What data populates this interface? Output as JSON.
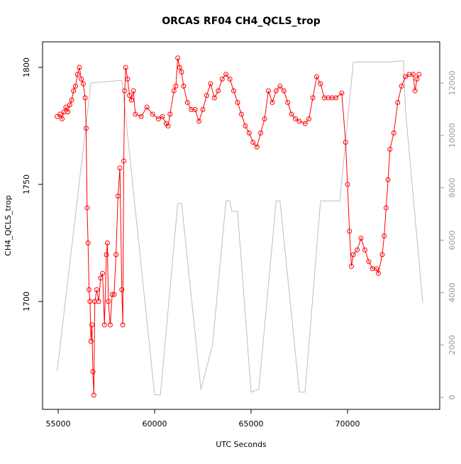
{
  "chart_data": {
    "type": "line",
    "title": "ORCAS RF04 CH4_QCLS_trop",
    "xlabel": "UTC Seconds",
    "ylabel": "CH4_QCLS_trop",
    "xlim": [
      54191,
      74779
    ],
    "xticks": [
      55000,
      60000,
      65000,
      70000
    ],
    "ylim": [
      1653.9,
      1810.9
    ],
    "yticks": [
      1700,
      1750,
      1800
    ],
    "y2lim": [
      -460,
      13571
    ],
    "y2ticks": [
      0,
      2000,
      4000,
      6000,
      8000,
      10000,
      12000
    ],
    "series": [
      {
        "color": "#ff0000",
        "markers": true,
        "x": [
          54950,
          55100,
          55200,
          55300,
          55400,
          55500,
          55600,
          55700,
          55800,
          55900,
          56000,
          56100,
          56200,
          56300,
          56400,
          56450,
          56500,
          56550,
          56600,
          56650,
          56700,
          56750,
          56800,
          56850,
          56900,
          57000,
          57100,
          57200,
          57300,
          57400,
          57500,
          57550,
          57600,
          57700,
          57800,
          57900,
          58000,
          58100,
          58200,
          58300,
          58350,
          58400,
          58450,
          58500,
          58600,
          58700,
          58800,
          58900,
          59000,
          59300,
          59600,
          59900,
          60200,
          60400,
          60600,
          60700,
          60800,
          61000,
          61100,
          61200,
          61300,
          61400,
          61500,
          61700,
          61900,
          62100,
          62300,
          62500,
          62700,
          62900,
          63100,
          63300,
          63500,
          63700,
          63900,
          64100,
          64300,
          64500,
          64700,
          64900,
          65100,
          65300,
          65500,
          65700,
          65900,
          66100,
          66300,
          66500,
          66700,
          66900,
          67100,
          67300,
          67500,
          67800,
          68000,
          68200,
          68400,
          68600,
          68800,
          69000,
          69200,
          69400,
          69700,
          69900,
          70000,
          70100,
          70200,
          70300,
          70500,
          70700,
          70900,
          71100,
          71300,
          71500,
          71600,
          71800,
          71900,
          72000,
          72100,
          72200,
          72400,
          72600,
          72800,
          73000,
          73200,
          73400,
          73500,
          73600,
          73700
        ],
        "values": [
          1779,
          1780,
          1778,
          1781,
          1783,
          1781,
          1784,
          1786,
          1790,
          1792,
          1797,
          1800,
          1795,
          1793,
          1787,
          1774,
          1740,
          1725,
          1705,
          1700,
          1683,
          1690,
          1670,
          1660,
          1700,
          1705,
          1700,
          1710,
          1712,
          1690,
          1720,
          1725,
          1700,
          1690,
          1703,
          1703,
          1720,
          1745,
          1757,
          1705,
          1690,
          1760,
          1790,
          1800,
          1795,
          1788,
          1786,
          1790,
          1780,
          1779,
          1783,
          1780,
          1778,
          1779,
          1776,
          1775,
          1780,
          1790,
          1792,
          1804,
          1800,
          1798,
          1792,
          1785,
          1782,
          1782,
          1777,
          1782,
          1788,
          1793,
          1787,
          1790,
          1795,
          1797,
          1795,
          1790,
          1785,
          1780,
          1775,
          1772,
          1768,
          1766,
          1772,
          1778,
          1790,
          1785,
          1790,
          1792,
          1790,
          1785,
          1780,
          1778,
          1777,
          1776,
          1778,
          1787,
          1796,
          1793,
          1787,
          1787,
          1787,
          1787,
          1789,
          1768,
          1750,
          1730,
          1715,
          1720,
          1722,
          1727,
          1722,
          1717,
          1714,
          1714,
          1712,
          1720,
          1728,
          1740,
          1752,
          1765,
          1772,
          1785,
          1792,
          1796,
          1797,
          1797,
          1790,
          1795,
          1797
        ]
      },
      {
        "color": "#bebebe",
        "axis": "y2",
        "markers": false,
        "x": [
          54950,
          56700,
          57500,
          58300,
          58600,
          60000,
          60300,
          61200,
          61400,
          62400,
          63000,
          63700,
          63900,
          64000,
          64300,
          65000,
          65400,
          66300,
          66500,
          67500,
          67800,
          68600,
          69600,
          70300,
          72000,
          72900,
          73000,
          73900
        ],
        "values": [
          1000,
          12000,
          12050,
          12100,
          10000,
          100,
          100,
          7400,
          7400,
          300,
          2000,
          7500,
          7500,
          7100,
          7100,
          200,
          300,
          7500,
          7500,
          200,
          200,
          7500,
          7500,
          12800,
          12800,
          12850,
          11000,
          3600
        ]
      }
    ]
  }
}
